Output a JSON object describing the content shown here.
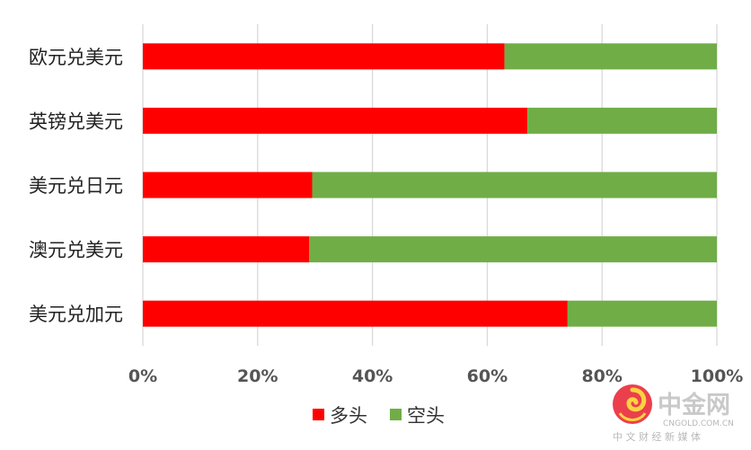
{
  "chart_data": {
    "type": "bar",
    "orientation": "horizontal",
    "stacked": true,
    "categories": [
      "欧元兑美元",
      "英镑兑美元",
      "美元兑日元",
      "澳元兑美元",
      "美元兑加元"
    ],
    "series": [
      {
        "name": "多头",
        "color": "#ff0000",
        "values": [
          63,
          67,
          29.5,
          29,
          74
        ]
      },
      {
        "name": "空头",
        "color": "#70ad47",
        "values": [
          37,
          33,
          70.5,
          71,
          26
        ]
      }
    ],
    "xlim": [
      0,
      100
    ],
    "xticks": [
      "0%",
      "20%",
      "40%",
      "60%",
      "80%",
      "100%"
    ],
    "grid": true,
    "legend_position": "bottom"
  },
  "watermark": {
    "brand": "中金网",
    "domain": "CNGOLD.COM.CN",
    "tagline": "中 文 财 经 新 媒 体"
  }
}
